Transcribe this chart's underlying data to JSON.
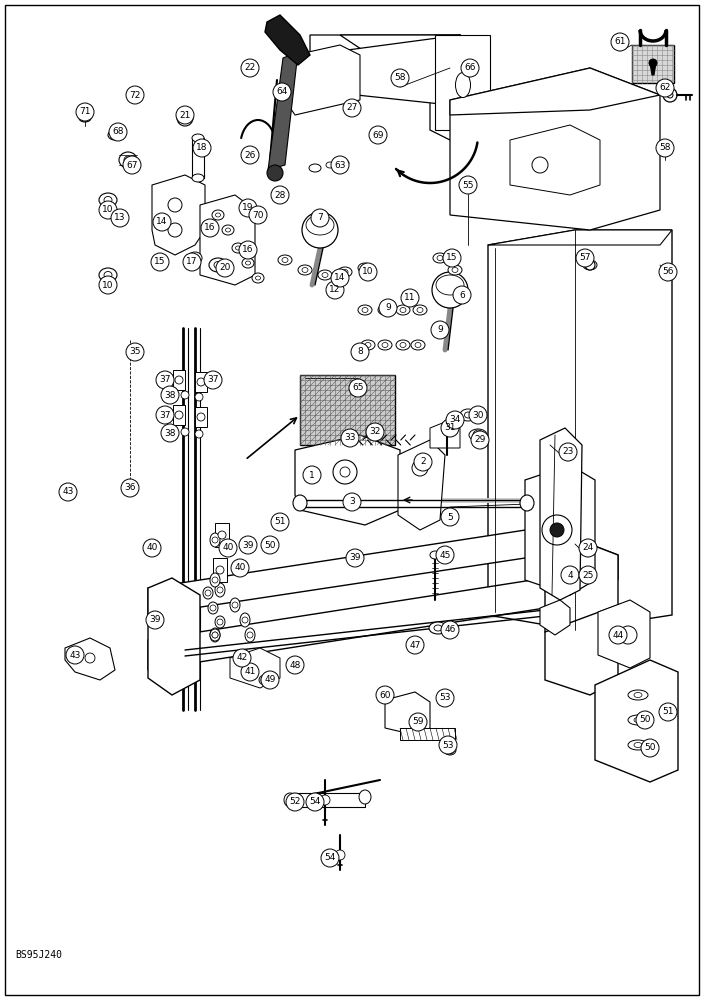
{
  "background_color": "#ffffff",
  "watermark_text": "BS95J240",
  "watermark_fontsize": 7,
  "figsize": [
    7.04,
    10.0
  ],
  "dpi": 100,
  "border_color": "#000000",
  "line_color": "#000000"
}
